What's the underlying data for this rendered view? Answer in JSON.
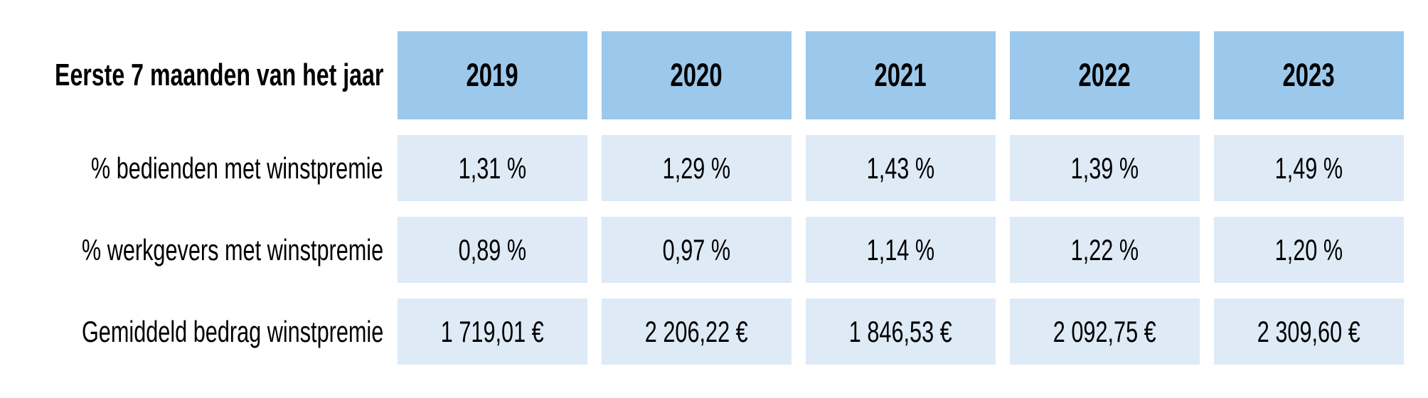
{
  "table": {
    "corner_label": "Eerste 7 maanden van het jaar",
    "columns": [
      "2019",
      "2020",
      "2021",
      "2022",
      "2023"
    ],
    "rows": [
      {
        "label": "% bedienden met winstpremie",
        "values": [
          "1,31 %",
          "1,29 %",
          "1,43 %",
          "1,39 %",
          "1,49 %"
        ]
      },
      {
        "label": "% werkgevers met winstpremie",
        "values": [
          "0,89 %",
          "0,97 %",
          "1,14 %",
          "1,22 %",
          "1,20 %"
        ]
      },
      {
        "label": "Gemiddeld bedrag winstpremie",
        "values": [
          "1 719,01 €",
          "2 206,22 €",
          "1 846,53 €",
          "2 092,75 €",
          "2 309,60 €"
        ]
      }
    ]
  },
  "colors": {
    "header_bg": "#9cc8eb",
    "cell_bg": "#deeaf6",
    "text": "#000000",
    "page_bg": "#ffffff"
  },
  "chart_data": {
    "type": "table",
    "title": "Eerste 7 maanden van het jaar",
    "categories": [
      "2019",
      "2020",
      "2021",
      "2022",
      "2023"
    ],
    "series": [
      {
        "name": "% bedienden met winstpremie",
        "unit": "%",
        "values": [
          1.31,
          1.29,
          1.43,
          1.39,
          1.49
        ]
      },
      {
        "name": "% werkgevers met winstpremie",
        "unit": "%",
        "values": [
          0.89,
          0.97,
          1.14,
          1.22,
          1.2
        ]
      },
      {
        "name": "Gemiddeld bedrag winstpremie",
        "unit": "EUR",
        "values": [
          1719.01,
          2206.22,
          1846.53,
          2092.75,
          2309.6
        ]
      }
    ],
    "layout": {
      "header_row_highlighted": true,
      "grid": "off",
      "legend": "none"
    }
  }
}
